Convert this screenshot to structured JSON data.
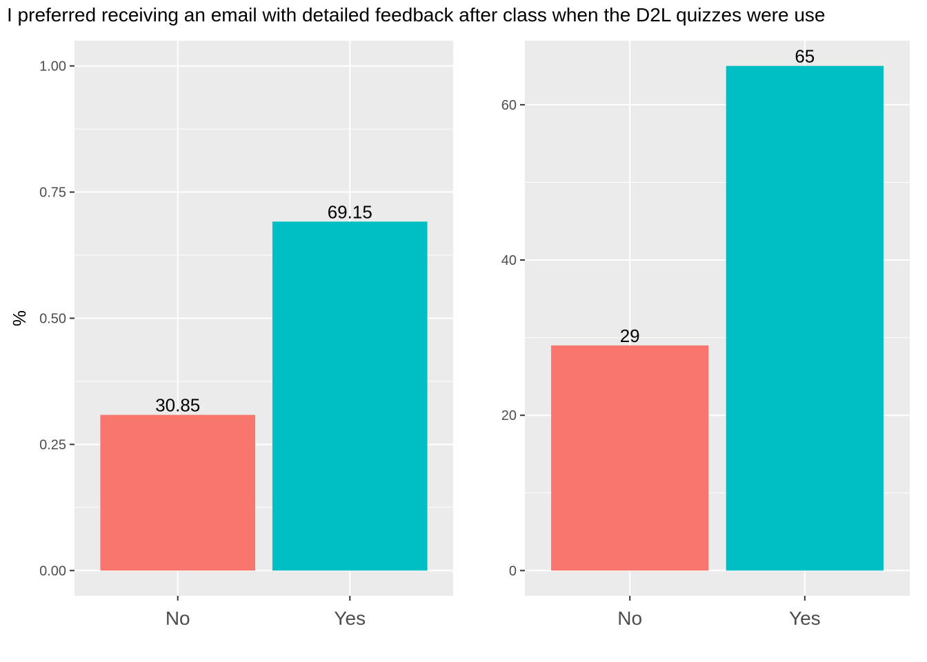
{
  "title": "I preferred receiving an email with detailed feedback after class when the D2L quizzes were use",
  "colors": {
    "No": "#F8766D",
    "Yes": "#00BFC4",
    "panel": "#EBEBEB",
    "grid": "#FFFFFF"
  },
  "chart_data": [
    {
      "type": "bar",
      "categories": [
        "No",
        "Yes"
      ],
      "values": [
        0.3085,
        0.6915
      ],
      "data_labels": [
        "30.85",
        "69.15"
      ],
      "ylabel": "%",
      "xlabel": "",
      "ylim": [
        -0.05,
        1.05
      ],
      "yticks": [
        0,
        0.25,
        0.5,
        0.75,
        1.0
      ],
      "ytick_labels": [
        "0.00",
        "0.25",
        "0.50",
        "0.75",
        "1.00"
      ],
      "grid": true,
      "legend": "none"
    },
    {
      "type": "bar",
      "categories": [
        "No",
        "Yes"
      ],
      "values": [
        29,
        65
      ],
      "data_labels": [
        "29",
        "65"
      ],
      "ylabel": "",
      "xlabel": "",
      "ylim": [
        -3.25,
        68.25
      ],
      "yticks": [
        0,
        20,
        40,
        60
      ],
      "ytick_labels": [
        "0",
        "20",
        "40",
        "60"
      ],
      "grid": true,
      "legend": "none"
    }
  ]
}
